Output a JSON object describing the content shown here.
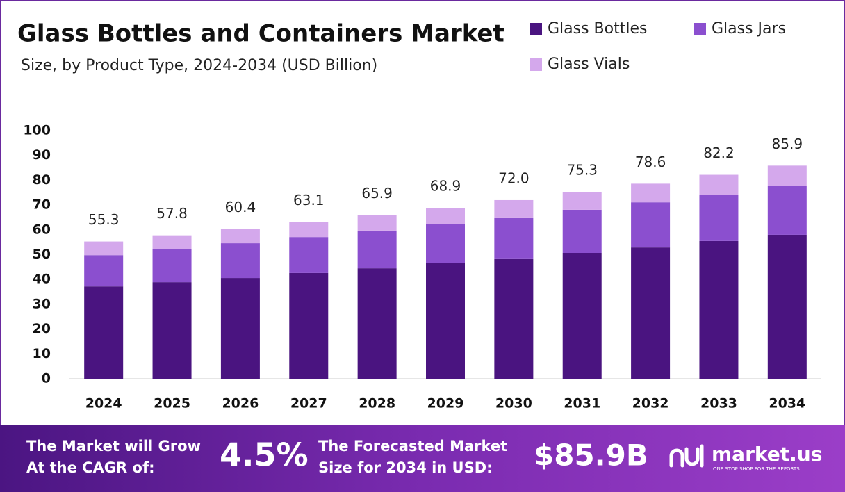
{
  "chart_data": {
    "type": "stacked-bar",
    "title": "Glass Bottles and Containers Market",
    "subtitle": "Size, by Product Type, 2024-2034 (USD Billion)",
    "categories": [
      "2024",
      "2025",
      "2026",
      "2027",
      "2028",
      "2029",
      "2030",
      "2031",
      "2032",
      "2033",
      "2034"
    ],
    "series": [
      {
        "name": "Glass Bottles",
        "color": "#4a1480",
        "values": [
          37.2,
          38.9,
          40.6,
          42.6,
          44.5,
          46.5,
          48.5,
          50.7,
          52.9,
          55.5,
          58.0
        ]
      },
      {
        "name": "Glass Jars",
        "color": "#8b4fcf",
        "values": [
          12.6,
          13.2,
          14.0,
          14.5,
          15.2,
          15.7,
          16.5,
          17.4,
          18.2,
          18.7,
          19.6
        ]
      },
      {
        "name": "Glass Vials",
        "color": "#d4a8ec",
        "values": [
          5.5,
          5.7,
          5.8,
          6.0,
          6.2,
          6.7,
          7.0,
          7.2,
          7.5,
          8.0,
          8.3
        ]
      }
    ],
    "totals": {
      "values": [
        55.3,
        57.8,
        60.4,
        63.1,
        65.9,
        68.9,
        72.0,
        75.3,
        78.6,
        82.2,
        85.9
      ],
      "value_labels": [
        "55.3",
        "57.8",
        "60.4",
        "63.1",
        "65.9",
        "68.9",
        "72.0",
        "75.3",
        "78.6",
        "82.2",
        "85.9"
      ]
    },
    "ylim": [
      0,
      100
    ],
    "yticks": [
      0,
      10,
      20,
      30,
      40,
      50,
      60,
      70,
      80,
      90,
      100
    ],
    "grid": false
  },
  "footer": {
    "cagr_text": [
      "The Market will Grow",
      "At the CAGR of:"
    ],
    "cagr_value": "4.5%",
    "forecast_text": [
      "The Forecasted Market",
      "Size for 2034 in USD:"
    ],
    "forecast_value": "$85.9B",
    "brand": "market.us",
    "tagline": "ONE STOP SHOP FOR THE REPORTS"
  }
}
